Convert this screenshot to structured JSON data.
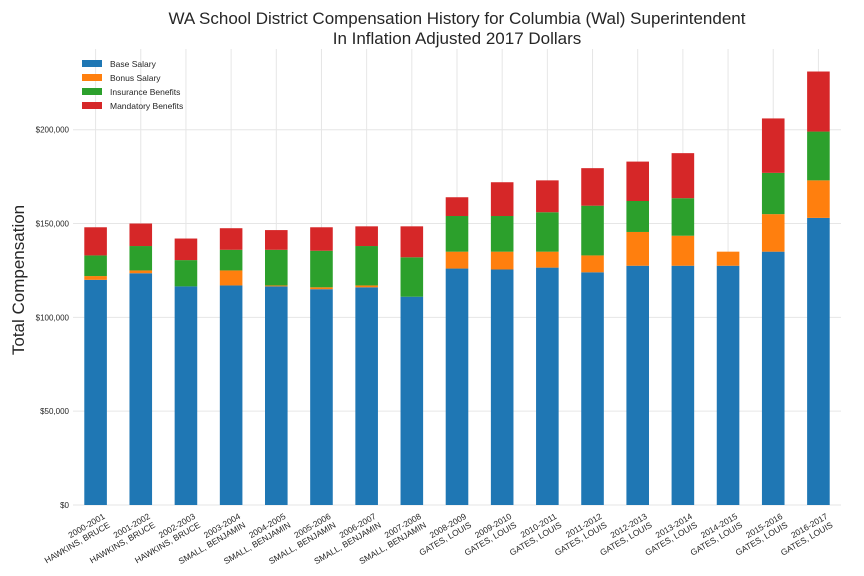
{
  "chart_data": {
    "type": "bar",
    "stacked": true,
    "title_line1": "WA School District Compensation History for Columbia (Wal) Superintendent",
    "title_line2": "In Inflation Adjusted 2017 Dollars",
    "xlabel": "",
    "ylabel": "Total Compensation",
    "ylim": [
      0,
      243000
    ],
    "y_ticks": [
      0,
      50000,
      100000,
      150000,
      200000
    ],
    "y_tick_labels": [
      "$0",
      "$50,000",
      "$100,000",
      "$150,000",
      "$200,000"
    ],
    "grid": true,
    "legend_position": "top-left",
    "categories": [
      {
        "year": "2000-2001",
        "name": "HAWKINS, BRUCE"
      },
      {
        "year": "2001-2002",
        "name": "HAWKINS, BRUCE"
      },
      {
        "year": "2002-2003",
        "name": "HAWKINS, BRUCE"
      },
      {
        "year": "2003-2004",
        "name": "SMALL, BENJAMIN"
      },
      {
        "year": "2004-2005",
        "name": "SMALL, BENJAMIN"
      },
      {
        "year": "2005-2006",
        "name": "SMALL, BENJAMIN"
      },
      {
        "year": "2006-2007",
        "name": "SMALL, BENJAMIN"
      },
      {
        "year": "2007-2008",
        "name": "SMALL, BENJAMIN"
      },
      {
        "year": "2008-2009",
        "name": "GATES, LOUIS"
      },
      {
        "year": "2009-2010",
        "name": "GATES, LOUIS"
      },
      {
        "year": "2010-2011",
        "name": "GATES, LOUIS"
      },
      {
        "year": "2011-2012",
        "name": "GATES, LOUIS"
      },
      {
        "year": "2012-2013",
        "name": "GATES, LOUIS"
      },
      {
        "year": "2013-2014",
        "name": "GATES, LOUIS"
      },
      {
        "year": "2014-2015",
        "name": "GATES, LOUIS"
      },
      {
        "year": "2015-2016",
        "name": "GATES, LOUIS"
      },
      {
        "year": "2016-2017",
        "name": "GATES, LOUIS"
      }
    ],
    "series": [
      {
        "name": "Base Salary",
        "color": "#1f77b4",
        "values": [
          120000,
          123500,
          116500,
          117000,
          116500,
          115000,
          116000,
          111000,
          126000,
          125500,
          126500,
          124000,
          127500,
          127500,
          127500,
          135000,
          153000
        ]
      },
      {
        "name": "Bonus Salary",
        "color": "#ff7f0e",
        "values": [
          2000,
          1500,
          0,
          8000,
          500,
          1000,
          1000,
          0,
          9000,
          9500,
          8500,
          9000,
          18000,
          16000,
          7500,
          20000,
          20000
        ]
      },
      {
        "name": "Insurance Benefits",
        "color": "#2ca02c",
        "values": [
          11000,
          13000,
          14000,
          11000,
          19000,
          19500,
          21000,
          21000,
          19000,
          19000,
          21000,
          26500,
          16500,
          20000,
          0,
          22000,
          26000
        ]
      },
      {
        "name": "Mandatory Benefits",
        "color": "#d62728",
        "values": [
          15000,
          12000,
          11500,
          11500,
          10500,
          12500,
          10500,
          16500,
          10000,
          18000,
          17000,
          20000,
          21000,
          24000,
          0,
          29000,
          32000
        ]
      }
    ]
  }
}
